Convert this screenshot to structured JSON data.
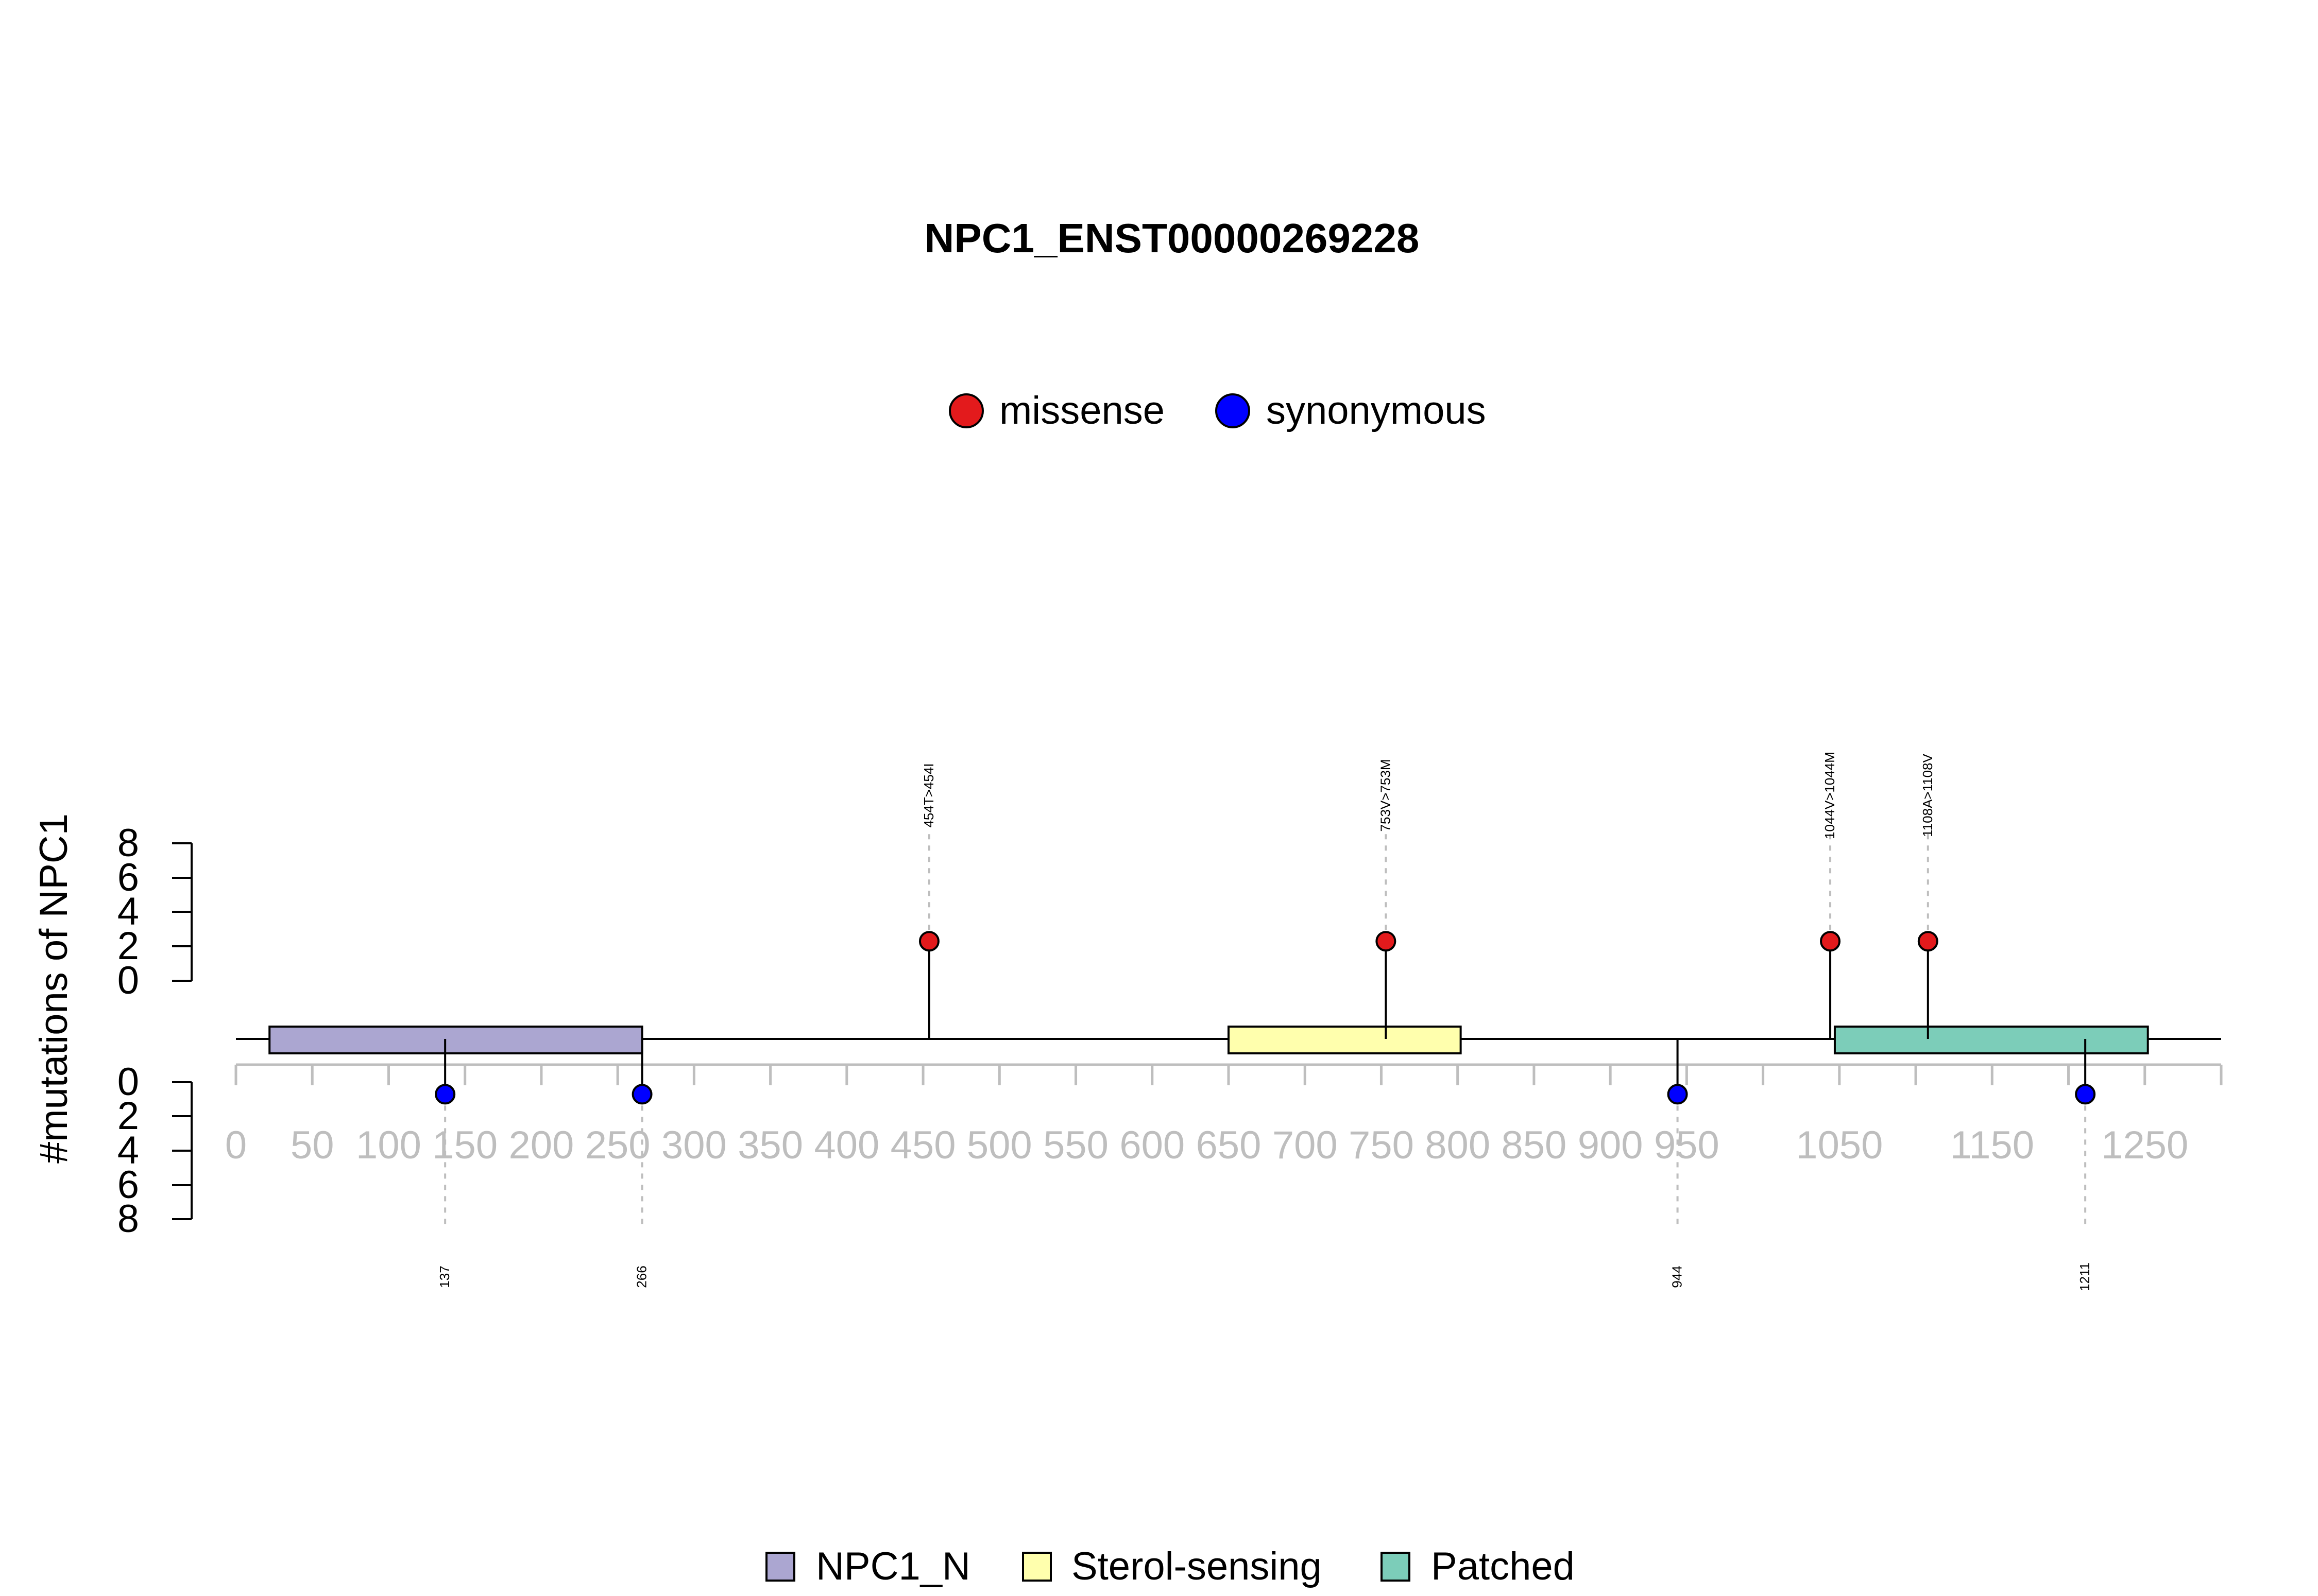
{
  "chart_data": {
    "type": "lollipop",
    "title": "NPC1_ENST00000269228",
    "ylabel": "#mutations of NPC1",
    "xlim": [
      0,
      1300
    ],
    "x_ticks": [
      0,
      50,
      100,
      150,
      200,
      250,
      300,
      350,
      400,
      450,
      500,
      550,
      600,
      650,
      700,
      750,
      800,
      850,
      900,
      950,
      1000,
      1050,
      1100,
      1150,
      1200,
      1250,
      1300
    ],
    "x_tick_labels": [
      "0",
      "50",
      "100",
      "150",
      "200",
      "250",
      "300",
      "350",
      "400",
      "450",
      "500",
      "550",
      "600",
      "650",
      "700",
      "750",
      "800",
      "850",
      "900",
      "950",
      "1050",
      "1150",
      "1250"
    ],
    "x_tick_label_values": [
      0,
      50,
      100,
      150,
      200,
      250,
      300,
      350,
      400,
      450,
      500,
      550,
      600,
      650,
      700,
      750,
      800,
      850,
      900,
      950,
      1050,
      1150,
      1250
    ],
    "y_ticks_upper": [
      "0",
      "2",
      "4",
      "6",
      "8"
    ],
    "y_ticks_lower": [
      "0",
      "2",
      "4",
      "6",
      "8"
    ],
    "ylim": [
      0,
      8
    ],
    "mutation_legend": [
      {
        "label": "missense",
        "color": "#E31A1C"
      },
      {
        "label": "synonymous",
        "color": "#0000FF"
      }
    ],
    "domain_legend": [
      {
        "label": "NPC1_N",
        "color": "#ABA6D1"
      },
      {
        "label": "Sterol-sensing",
        "color": "#FFFFAD"
      },
      {
        "label": "Patched",
        "color": "#7CCDB9"
      }
    ],
    "domains": [
      {
        "name": "NPC1_N",
        "start": 22,
        "end": 266,
        "color": "#ABA6D1"
      },
      {
        "name": "Sterol-sensing",
        "start": 650,
        "end": 802,
        "color": "#FFFFAD"
      },
      {
        "name": "Patched",
        "start": 1047,
        "end": 1252,
        "color": "#7CCDB9"
      }
    ],
    "mutations_above": [
      {
        "position": 454,
        "count": 1,
        "type": "missense",
        "label": "454T>454I"
      },
      {
        "position": 753,
        "count": 1,
        "type": "missense",
        "label": "753V>753M"
      },
      {
        "position": 1044,
        "count": 1,
        "type": "missense",
        "label": "1044V>1044M"
      },
      {
        "position": 1108,
        "count": 1,
        "type": "missense",
        "label": "1108A>1108V"
      }
    ],
    "mutations_below": [
      {
        "position": 137,
        "count": 1,
        "type": "synonymous",
        "label": "137"
      },
      {
        "position": 266,
        "count": 1,
        "type": "synonymous",
        "label": "266"
      },
      {
        "position": 944,
        "count": 1,
        "type": "synonymous",
        "label": "944"
      },
      {
        "position": 1211,
        "count": 1,
        "type": "synonymous",
        "label": "1211"
      }
    ]
  }
}
